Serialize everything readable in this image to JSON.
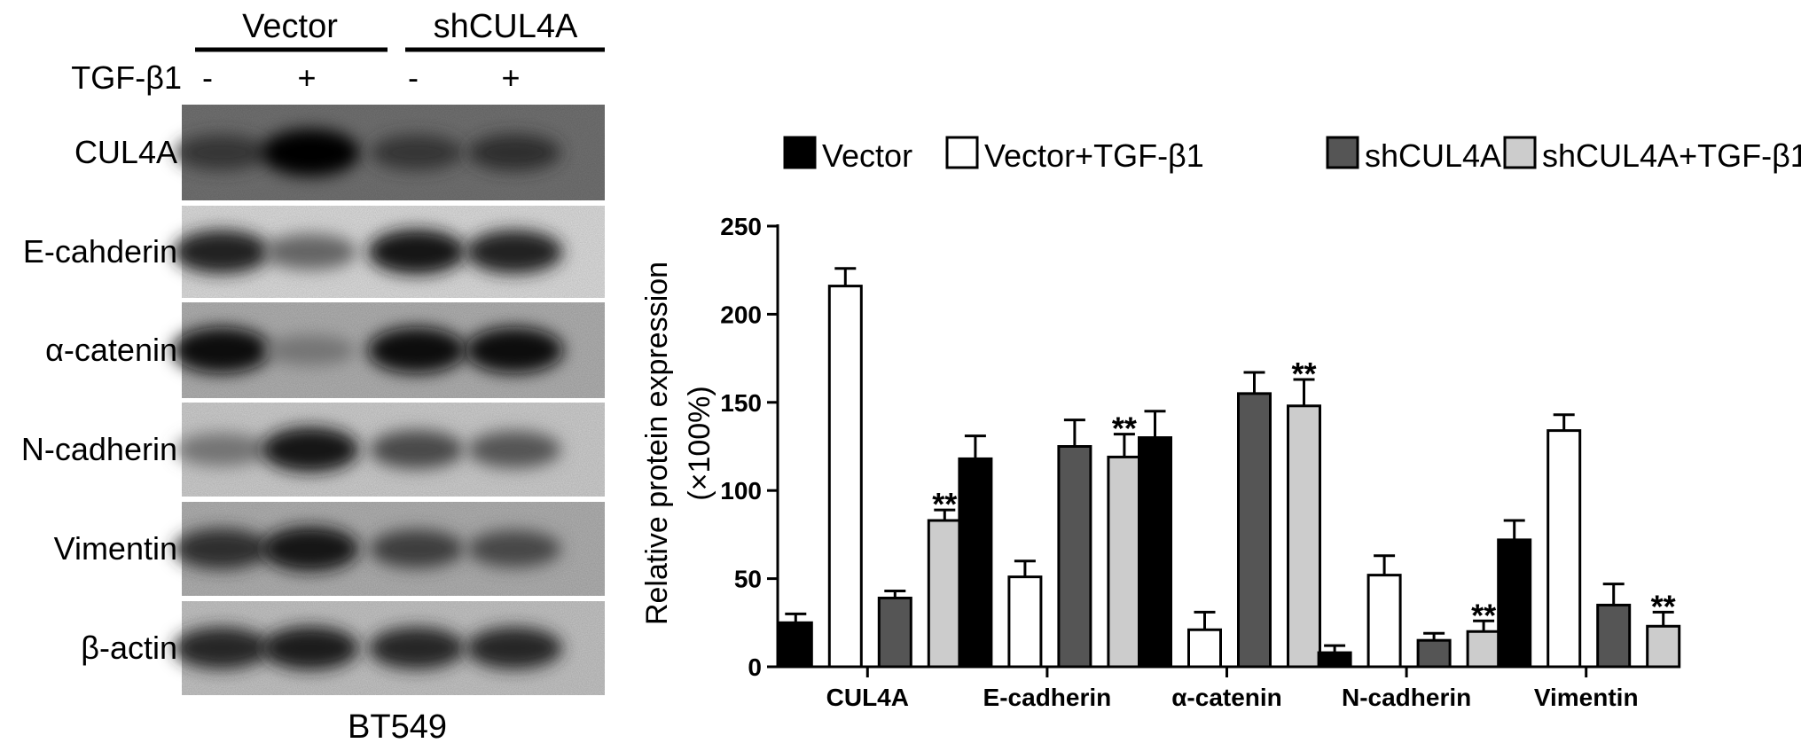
{
  "blot": {
    "groups": [
      {
        "label": "Vector"
      },
      {
        "label": "shCUL4A"
      }
    ],
    "treatment_label": "TGF-β1",
    "treatment_signs": [
      "-",
      "+",
      "-",
      "+"
    ],
    "rows": [
      {
        "label": "CUL4A",
        "intensity": [
          0.55,
          1.0,
          0.55,
          0.6
        ],
        "background": 0.55
      },
      {
        "label": "E-cahderin",
        "intensity": [
          0.85,
          0.55,
          0.9,
          0.85
        ],
        "background": 0.12
      },
      {
        "label": "α-catenin",
        "intensity": [
          0.95,
          0.35,
          0.95,
          0.95
        ],
        "background": 0.3
      },
      {
        "label": "N-cadherin",
        "intensity": [
          0.45,
          0.9,
          0.65,
          0.6
        ],
        "background": 0.18
      },
      {
        "label": "Vimentin",
        "intensity": [
          0.75,
          0.9,
          0.65,
          0.6
        ],
        "background": 0.3
      },
      {
        "label": "β-actin",
        "intensity": [
          0.8,
          0.85,
          0.8,
          0.8
        ],
        "background": 0.22
      }
    ],
    "cell_line": "BT549"
  },
  "chart_data": {
    "type": "bar",
    "categories": [
      "CUL4A",
      "E-cadherin",
      "α-catenin",
      "N-cadherin",
      "Vimentin"
    ],
    "series": [
      {
        "name": "Vector",
        "values": [
          25,
          118,
          130,
          8,
          72
        ],
        "errors": [
          5,
          13,
          15,
          4,
          11
        ],
        "color": "#000000"
      },
      {
        "name": "Vector+TGF-β1",
        "values": [
          216,
          51,
          21,
          52,
          134
        ],
        "errors": [
          10,
          9,
          10,
          11,
          9
        ],
        "color": "#ffffff"
      },
      {
        "name": "shCUL4A",
        "values": [
          39,
          125,
          155,
          15,
          35
        ],
        "errors": [
          4,
          15,
          12,
          4,
          12
        ],
        "color": "#555555"
      },
      {
        "name": "shCUL4A+TGF-β1",
        "values": [
          83,
          119,
          148,
          20,
          23
        ],
        "errors": [
          6,
          13,
          15,
          6,
          8
        ],
        "color": "#cccccc"
      }
    ],
    "annotations": [
      {
        "category": "CUL4A",
        "series": "shCUL4A+TGF-β1",
        "text": "**"
      },
      {
        "category": "E-cadherin",
        "series": "shCUL4A+TGF-β1",
        "text": "**"
      },
      {
        "category": "α-catenin",
        "series": "shCUL4A+TGF-β1",
        "text": "**"
      },
      {
        "category": "N-cadherin",
        "series": "shCUL4A+TGF-β1",
        "text": "**"
      },
      {
        "category": "Vimentin",
        "series": "shCUL4A+TGF-β1",
        "text": "**"
      }
    ],
    "ylabel": "Relative protein expression",
    "ylabel_unit": "(×100%)",
    "ylim": [
      0,
      250
    ],
    "yticks": [
      0,
      50,
      100,
      150,
      200,
      250
    ],
    "grid": false,
    "legend": "top"
  }
}
